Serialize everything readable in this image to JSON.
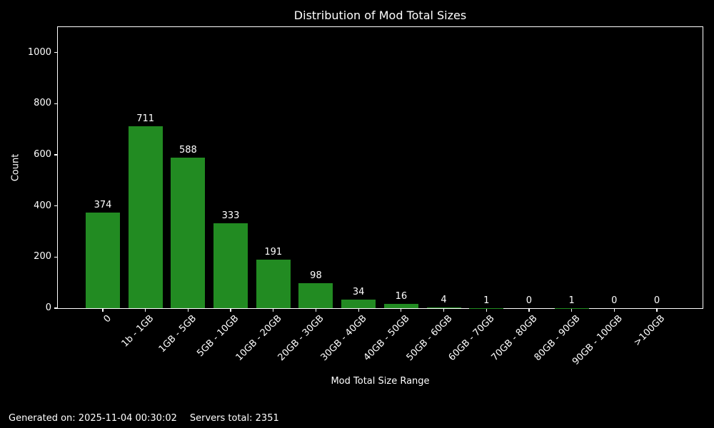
{
  "chart_data": {
    "type": "bar",
    "title": "Distribution of Mod Total Sizes",
    "xlabel": "Mod Total Size Range",
    "ylabel": "Count",
    "categories": [
      "0",
      "1b - 1GB",
      "1GB - 5GB",
      "5GB - 10GB",
      "10GB - 20GB",
      "20GB - 30GB",
      "30GB - 40GB",
      "40GB - 50GB",
      "50GB - 60GB",
      "60GB - 70GB",
      "70GB - 80GB",
      "80GB - 90GB",
      "90GB - 100GB",
      ">100GB"
    ],
    "values": [
      374,
      711,
      588,
      333,
      191,
      98,
      34,
      16,
      4,
      1,
      0,
      1,
      0,
      0
    ],
    "ylim": [
      0,
      1100
    ],
    "yticks": [
      0,
      200,
      400,
      600,
      800,
      1000
    ],
    "bar_labels": true,
    "grid": false,
    "legend_position": "none",
    "x_tick_rotation_deg": 45,
    "colors": {
      "background": "#000000",
      "bar": "#228B22",
      "text": "#ffffff",
      "axis": "#ffffff"
    }
  },
  "footer": {
    "generated": "Generated on: 2025-11-04 00:30:02",
    "servers_total": "Servers total: 2351"
  }
}
